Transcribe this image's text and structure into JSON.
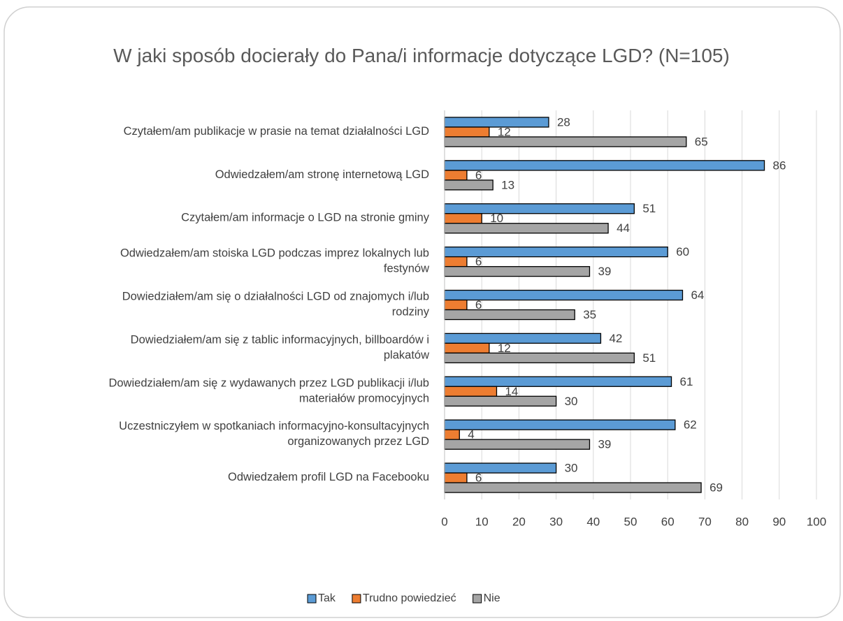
{
  "chart_data": {
    "type": "bar",
    "orientation": "horizontal",
    "title": "W jaki sposób docierały do Pana/i informacje dotyczące LGD? (N=105)",
    "categories": [
      "Czytałem/am publikacje w prasie na temat działalności LGD",
      "Odwiedzałem/am stronę internetową LGD",
      "Czytałem/am informacje o LGD na stronie gminy",
      "Odwiedzałem/am stoiska LGD podczas imprez lokalnych lub festynów",
      "Dowiedziałem/am się o działalności LGD od znajomych i/lub rodziny",
      "Dowiedziałem/am się z tablic informacyjnych, billboardów i plakatów",
      "Dowiedziałem/am się z wydawanych przez LGD publikacji i/lub materiałów promocyjnych",
      "Uczestniczyłem w spotkaniach informacyjno-konsultacyjnych organizowanych przez LGD",
      "Odwiedzałem profil LGD na Facebooku"
    ],
    "series": [
      {
        "name": "Tak",
        "color": "#5b9bd5",
        "values": [
          28,
          86,
          51,
          60,
          64,
          42,
          61,
          62,
          30
        ]
      },
      {
        "name": "Trudno powiedzieć",
        "color": "#ed7d31",
        "values": [
          12,
          6,
          10,
          6,
          6,
          12,
          14,
          4,
          6
        ]
      },
      {
        "name": "Nie",
        "color": "#a5a5a5",
        "values": [
          65,
          13,
          44,
          39,
          35,
          51,
          30,
          39,
          69
        ]
      }
    ],
    "xlim": [
      0,
      100
    ],
    "xticks": [
      0,
      10,
      20,
      30,
      40,
      50,
      60,
      70,
      80,
      90,
      100
    ],
    "grid": true,
    "legend": "bottom"
  }
}
